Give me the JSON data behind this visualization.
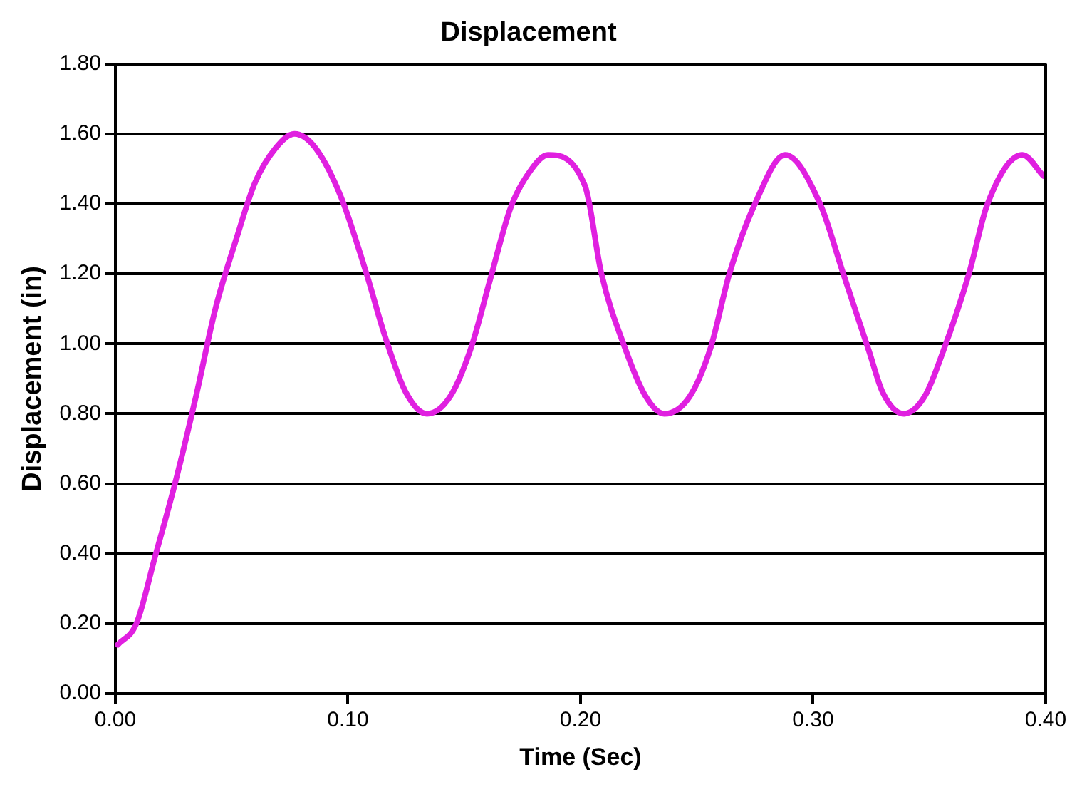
{
  "chart_data": {
    "type": "line",
    "title": "Displacement",
    "xlabel": "Time (Sec)",
    "ylabel": "Displacement (in)",
    "xlim": [
      0,
      0.4
    ],
    "xticks": [
      {
        "value": 0,
        "label": "0.00"
      },
      {
        "value": 0.1,
        "label": "0.10"
      },
      {
        "value": 0.2,
        "label": "0.20"
      },
      {
        "value": 0.3,
        "label": "0.30"
      },
      {
        "value": 0.4,
        "label": "0.40"
      }
    ],
    "ylim": [
      0,
      1.8
    ],
    "yticks": [
      {
        "value": 0,
        "label": "0.00"
      },
      {
        "value": 0.2,
        "label": "0.20"
      },
      {
        "value": 0.4,
        "label": "0.40"
      },
      {
        "value": 0.6,
        "label": "0.60"
      },
      {
        "value": 0.8,
        "label": "0.80"
      },
      {
        "value": 1,
        "label": "1.00"
      },
      {
        "value": 1.2,
        "label": "1.20"
      },
      {
        "value": 1.4,
        "label": "1.40"
      },
      {
        "value": 1.6,
        "label": "1.60"
      },
      {
        "value": 1.8,
        "label": "1.80"
      }
    ],
    "grid": "y",
    "legend": false,
    "marker": "none",
    "line_style": "solid",
    "series": [
      {
        "color": "#e020e0",
        "x": [
          0.001,
          0.009,
          0.017,
          0.026,
          0.035,
          0.043,
          0.052,
          0.06,
          0.069,
          0.077,
          0.086,
          0.097,
          0.108,
          0.116,
          0.125,
          0.134,
          0.144,
          0.153,
          0.161,
          0.17,
          0.179,
          0.186,
          0.202,
          0.209,
          0.219,
          0.228,
          0.236,
          0.247,
          0.256,
          0.264,
          0.275,
          0.288,
          0.303,
          0.313,
          0.324,
          0.33,
          0.339,
          0.348,
          0.356,
          0.367,
          0.375,
          0.39,
          0.399
        ],
        "values": [
          0.14,
          0.2,
          0.39,
          0.61,
          0.86,
          1.1,
          1.3,
          1.46,
          1.56,
          1.6,
          1.56,
          1.42,
          1.2,
          1.02,
          0.86,
          0.8,
          0.85,
          0.99,
          1.18,
          1.39,
          1.5,
          1.54,
          1.45,
          1.2,
          0.99,
          0.85,
          0.8,
          0.85,
          0.99,
          1.2,
          1.4,
          1.54,
          1.4,
          1.2,
          0.98,
          0.86,
          0.8,
          0.85,
          0.98,
          1.2,
          1.4,
          1.54,
          1.48
        ]
      }
    ]
  }
}
